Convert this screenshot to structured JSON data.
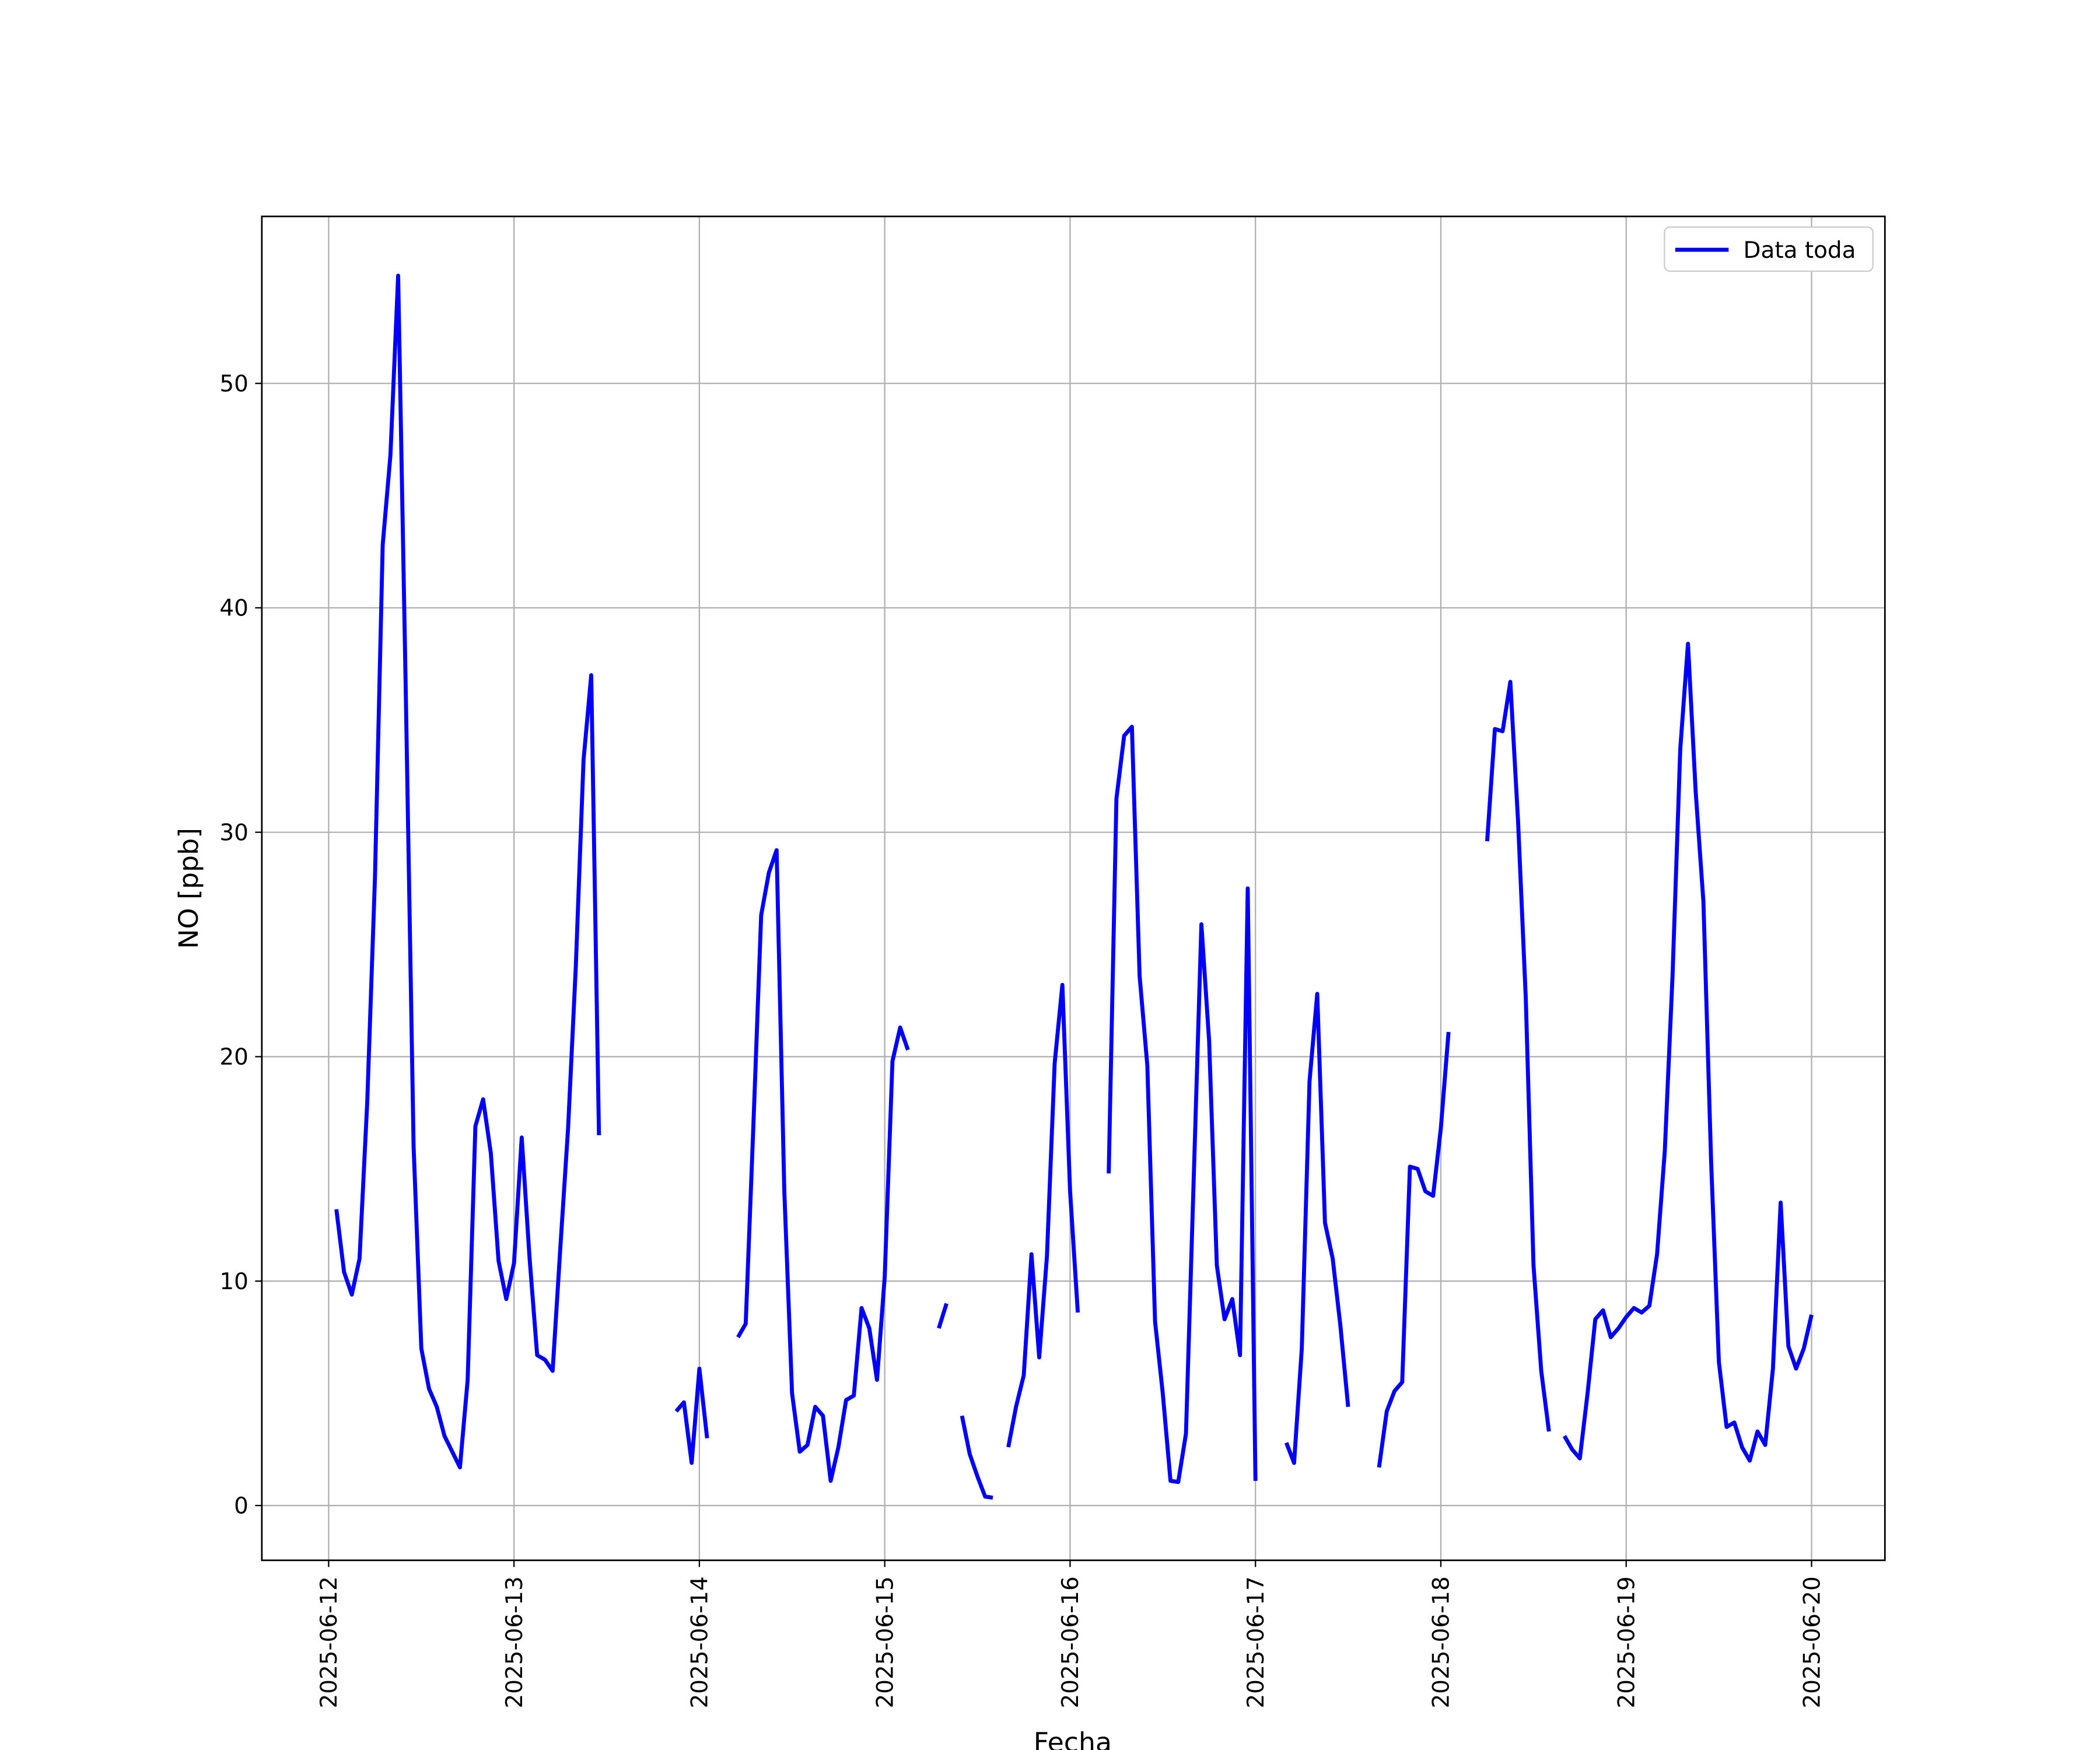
{
  "chart_data": {
    "type": "line",
    "xlabel": "Fecha",
    "ylabel": "NO [ppb]",
    "x": [
      "2025-06-12 01:00",
      "2025-06-12 02:00",
      "2025-06-12 03:00",
      "2025-06-12 04:00",
      "2025-06-12 05:00",
      "2025-06-12 06:00",
      "2025-06-12 07:00",
      "2025-06-12 08:00",
      "2025-06-12 09:00",
      "2025-06-12 10:00",
      "2025-06-12 11:00",
      "2025-06-12 12:00",
      "2025-06-12 13:00",
      "2025-06-12 14:00",
      "2025-06-12 15:00",
      "2025-06-12 16:00",
      "2025-06-12 17:00",
      "2025-06-12 18:00",
      "2025-06-12 19:00",
      "2025-06-12 20:00",
      "2025-06-12 21:00",
      "2025-06-12 22:00",
      "2025-06-12 23:00",
      "2025-06-13 00:00",
      "2025-06-13 01:00",
      "2025-06-13 02:00",
      "2025-06-13 03:00",
      "2025-06-13 04:00",
      "2025-06-13 05:00",
      "2025-06-13 06:00",
      "2025-06-13 07:00",
      "2025-06-13 08:00",
      "2025-06-13 09:00",
      "2025-06-13 10:00",
      "2025-06-13 11:00",
      "2025-06-13 12:00",
      "2025-06-13 13:00",
      "2025-06-13 14:00",
      "2025-06-13 15:00",
      "2025-06-13 16:00",
      "2025-06-13 17:00",
      "2025-06-13 18:00",
      "2025-06-13 19:00",
      "2025-06-13 20:00",
      "2025-06-13 21:00",
      "2025-06-13 22:00",
      "2025-06-13 23:00",
      "2025-06-14 00:00",
      "2025-06-14 01:00",
      "2025-06-14 02:00",
      "2025-06-14 03:00",
      "2025-06-14 04:00",
      "2025-06-14 05:00",
      "2025-06-14 06:00",
      "2025-06-14 07:00",
      "2025-06-14 08:00",
      "2025-06-14 09:00",
      "2025-06-14 10:00",
      "2025-06-14 11:00",
      "2025-06-14 12:00",
      "2025-06-14 13:00",
      "2025-06-14 14:00",
      "2025-06-14 15:00",
      "2025-06-14 16:00",
      "2025-06-14 17:00",
      "2025-06-14 18:00",
      "2025-06-14 19:00",
      "2025-06-14 20:00",
      "2025-06-14 21:00",
      "2025-06-14 22:00",
      "2025-06-14 23:00",
      "2025-06-15 00:00",
      "2025-06-15 01:00",
      "2025-06-15 02:00",
      "2025-06-15 03:00",
      "2025-06-15 04:00",
      "2025-06-15 05:00",
      "2025-06-15 06:00",
      "2025-06-15 07:00",
      "2025-06-15 08:00",
      "2025-06-15 09:00",
      "2025-06-15 10:00",
      "2025-06-15 11:00",
      "2025-06-15 12:00",
      "2025-06-15 13:00",
      "2025-06-15 14:00",
      "2025-06-15 15:00",
      "2025-06-15 16:00",
      "2025-06-15 17:00",
      "2025-06-15 18:00",
      "2025-06-15 19:00",
      "2025-06-15 20:00",
      "2025-06-15 21:00",
      "2025-06-15 22:00",
      "2025-06-15 23:00",
      "2025-06-16 00:00",
      "2025-06-16 01:00",
      "2025-06-16 02:00",
      "2025-06-16 03:00",
      "2025-06-16 04:00",
      "2025-06-16 05:00",
      "2025-06-16 06:00",
      "2025-06-16 07:00",
      "2025-06-16 08:00",
      "2025-06-16 09:00",
      "2025-06-16 10:00",
      "2025-06-16 11:00",
      "2025-06-16 12:00",
      "2025-06-16 13:00",
      "2025-06-16 14:00",
      "2025-06-16 15:00",
      "2025-06-16 16:00",
      "2025-06-16 17:00",
      "2025-06-16 18:00",
      "2025-06-16 19:00",
      "2025-06-16 20:00",
      "2025-06-16 21:00",
      "2025-06-16 22:00",
      "2025-06-16 23:00",
      "2025-06-17 00:00",
      "2025-06-17 01:00",
      "2025-06-17 02:00",
      "2025-06-17 03:00",
      "2025-06-17 04:00",
      "2025-06-17 05:00",
      "2025-06-17 06:00",
      "2025-06-17 07:00",
      "2025-06-17 08:00",
      "2025-06-17 09:00",
      "2025-06-17 10:00",
      "2025-06-17 11:00",
      "2025-06-17 12:00",
      "2025-06-17 13:00",
      "2025-06-17 14:00",
      "2025-06-17 15:00",
      "2025-06-17 16:00",
      "2025-06-17 17:00",
      "2025-06-17 18:00",
      "2025-06-17 19:00",
      "2025-06-17 20:00",
      "2025-06-17 21:00",
      "2025-06-17 22:00",
      "2025-06-17 23:00",
      "2025-06-18 00:00",
      "2025-06-18 01:00",
      "2025-06-18 02:00",
      "2025-06-18 03:00",
      "2025-06-18 04:00",
      "2025-06-18 05:00",
      "2025-06-18 06:00",
      "2025-06-18 07:00",
      "2025-06-18 08:00",
      "2025-06-18 09:00",
      "2025-06-18 10:00",
      "2025-06-18 11:00",
      "2025-06-18 12:00",
      "2025-06-18 13:00",
      "2025-06-18 14:00",
      "2025-06-18 15:00",
      "2025-06-18 16:00",
      "2025-06-18 17:00",
      "2025-06-18 18:00",
      "2025-06-18 19:00",
      "2025-06-18 20:00",
      "2025-06-18 21:00",
      "2025-06-18 22:00",
      "2025-06-18 23:00",
      "2025-06-19 00:00",
      "2025-06-19 01:00",
      "2025-06-19 02:00",
      "2025-06-19 03:00",
      "2025-06-19 04:00",
      "2025-06-19 05:00",
      "2025-06-19 06:00",
      "2025-06-19 07:00",
      "2025-06-19 08:00",
      "2025-06-19 09:00",
      "2025-06-19 10:00",
      "2025-06-19 11:00",
      "2025-06-19 12:00",
      "2025-06-19 13:00",
      "2025-06-19 14:00",
      "2025-06-19 15:00",
      "2025-06-19 16:00",
      "2025-06-19 17:00",
      "2025-06-19 18:00",
      "2025-06-19 19:00",
      "2025-06-19 20:00",
      "2025-06-19 21:00",
      "2025-06-19 22:00",
      "2025-06-19 23:00",
      "2025-06-20 00:00"
    ],
    "series": [
      {
        "name": "Data toda",
        "color": "#0000ff",
        "values": [
          13.2,
          10.4,
          9.4,
          11,
          18,
          28,
          42.8,
          46.8,
          54.8,
          36,
          16,
          7,
          5.2,
          4.4,
          3.1,
          2.4,
          1.7,
          5.6,
          16.9,
          18.1,
          15.7,
          10.9,
          9.2,
          10.8,
          16.4,
          11.1,
          6.7,
          6.5,
          6.0,
          11.5,
          16.8,
          24,
          33.2,
          37.0,
          16.5,
          null,
          null,
          null,
          null,
          null,
          null,
          null,
          null,
          null,
          4.2,
          4.6,
          1.9,
          6.1,
          3.0,
          null,
          null,
          null,
          7.5,
          8.1,
          17,
          26.3,
          28.2,
          29.2,
          14,
          5,
          2.4,
          2.7,
          4.4,
          4,
          1.1,
          2.6,
          4.7,
          4.9,
          8.8,
          7.9,
          5.6,
          10.2,
          19.8,
          21.3,
          20.3,
          null,
          null,
          null,
          7.9,
          9.0,
          null,
          4,
          2.3,
          1.3,
          0.4,
          0.35,
          null,
          2.6,
          4.4,
          5.8,
          11.2,
          6.6,
          11.1,
          19.7,
          23.2,
          14,
          8.6,
          null,
          null,
          null,
          14.8,
          31.5,
          34.3,
          34.7,
          23.6,
          19.6,
          8.2,
          5,
          1.1,
          1.05,
          3.2,
          14.5,
          25.9,
          20.7,
          10.7,
          8.3,
          9.2,
          6.7,
          27.5,
          1.1,
          null,
          null,
          null,
          2.8,
          1.9,
          7,
          18.9,
          22.8,
          12.6,
          11,
          8,
          4.4,
          null,
          null,
          null,
          1.7,
          4.2,
          5.1,
          5.5,
          15.1,
          15,
          14,
          13.8,
          16.8,
          21.1,
          null,
          null,
          null,
          null,
          29.6,
          34.6,
          34.5,
          36.7,
          30.5,
          22.6,
          10.7,
          6.0,
          3.3,
          null,
          3.1,
          2.5,
          2.1,
          5,
          8.3,
          8.7,
          7.5,
          7.9,
          8.4,
          8.8,
          8.6,
          8.9,
          11.2,
          15.8,
          23.6,
          33.7,
          38.4,
          31.8,
          26.9,
          15.3,
          6.4,
          3.5,
          3.7,
          2.6,
          2,
          3.3,
          2.7,
          6.1,
          13.5,
          7.1,
          6.1,
          7,
          8.5
        ]
      }
    ],
    "xlim": [
      "2025-06-11 15:21",
      "2025-06-20 09:30"
    ],
    "xticks": [
      "2025-06-12",
      "2025-06-13",
      "2025-06-14",
      "2025-06-15",
      "2025-06-16",
      "2025-06-17",
      "2025-06-18",
      "2025-06-19",
      "2025-06-20"
    ],
    "ylim": [
      -2.44,
      57.44
    ],
    "yticks": [
      0,
      10,
      20,
      30,
      40,
      50
    ],
    "grid": true,
    "legend": "upper right"
  }
}
